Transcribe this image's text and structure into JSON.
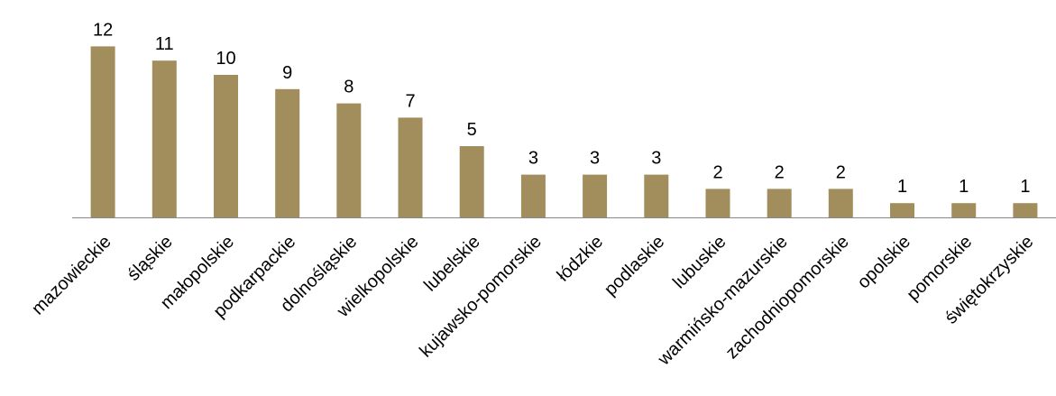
{
  "chart_data": {
    "type": "bar",
    "categories": [
      "mazowieckie",
      "śląskie",
      "małopolskie",
      "podkarpackie",
      "dolnośląskie",
      "wielkopolskie",
      "lubelskie",
      "kujawsko-pomorskie",
      "łódzkie",
      "podlaskie",
      "lubuskie",
      "warmińsko-mazurskie",
      "zachodniopomorskie",
      "opolskie",
      "pomorskie",
      "świętokrzyskie"
    ],
    "values": [
      12,
      11,
      10,
      9,
      8,
      7,
      5,
      3,
      3,
      3,
      2,
      2,
      2,
      1,
      1,
      1
    ],
    "title": "",
    "xlabel": "",
    "ylabel": "",
    "ylim": [
      0,
      12
    ],
    "grid": false,
    "legend": "none",
    "data_labels": true,
    "bar_color": "#A18E5C",
    "axis_color": "#888888"
  }
}
